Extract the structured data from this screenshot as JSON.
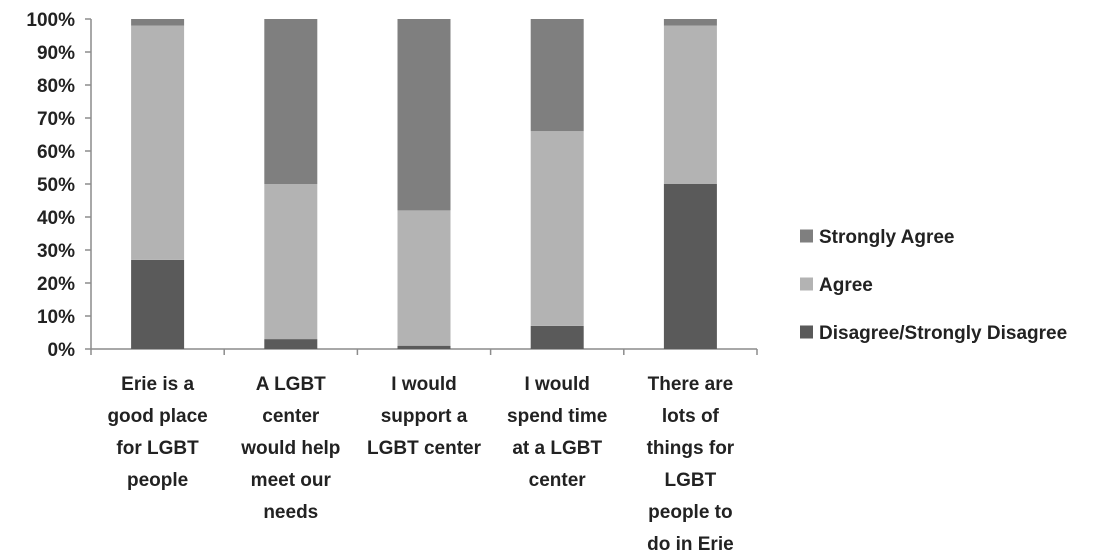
{
  "chart_data": {
    "type": "bar",
    "stacked": true,
    "percent": true,
    "categories": [
      [
        "Erie is a",
        "good place",
        "for LGBT",
        "people"
      ],
      [
        "A LGBT",
        "center",
        "would help",
        "meet our",
        "needs"
      ],
      [
        "I would",
        "support a",
        "LGBT center"
      ],
      [
        "I would",
        "spend time",
        "at a LGBT",
        "center"
      ],
      [
        "There are",
        "lots of",
        "things for",
        "LGBT",
        "people to",
        "do in Erie"
      ]
    ],
    "series": [
      {
        "name": "Disagree/Strongly Disagree",
        "color": "#5a5a5a",
        "values": [
          27,
          3,
          1,
          7,
          50
        ]
      },
      {
        "name": "Agree",
        "color": "#b3b3b3",
        "values": [
          71,
          47,
          41,
          59,
          48
        ]
      },
      {
        "name": "Strongly Agree",
        "color": "#7f7f7f",
        "values": [
          2,
          50,
          58,
          34,
          2
        ]
      }
    ],
    "legend_order": [
      "Strongly Agree",
      "Agree",
      "Disagree/Strongly Disagree"
    ],
    "yticks": [
      "0%",
      "10%",
      "20%",
      "30%",
      "40%",
      "50%",
      "60%",
      "70%",
      "80%",
      "90%",
      "100%"
    ],
    "ylim": [
      0,
      100
    ],
    "legend_position": "right",
    "grid": false,
    "title": "",
    "xlabel": "",
    "ylabel": ""
  }
}
